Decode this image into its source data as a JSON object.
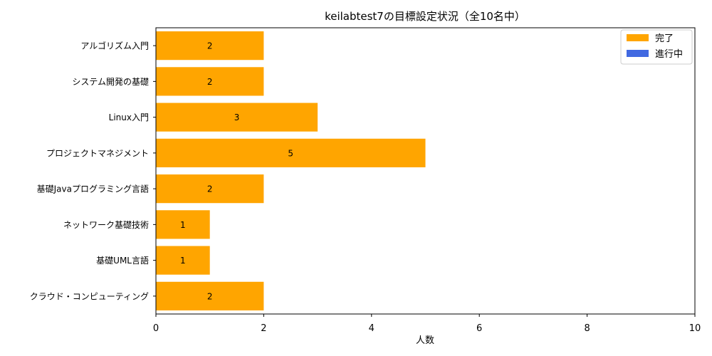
{
  "chart_data": {
    "type": "bar",
    "orientation": "horizontal",
    "title": "keilabtest7の目標設定状況（全10名中）",
    "xlabel": "人数",
    "ylabel": "",
    "xlim": [
      0,
      10
    ],
    "xticks": [
      0,
      2,
      4,
      6,
      8,
      10
    ],
    "grid": false,
    "legend_position": "top-right",
    "categories": [
      "アルゴリズム入門",
      "システム開発の基礎",
      "Linux入門",
      "プロジェクトマネジメント",
      "基礎Javaプログラミング言語",
      "ネットワーク基礎技術",
      "基礎UML言語",
      "クラウド・コンピューティング"
    ],
    "series": [
      {
        "name": "完了",
        "color": "#FFA500",
        "values": [
          2,
          2,
          3,
          5,
          2,
          1,
          1,
          2
        ]
      },
      {
        "name": "進行中",
        "color": "#4169E1",
        "values": [
          0,
          0,
          0,
          0,
          0,
          0,
          0,
          0
        ]
      }
    ]
  }
}
